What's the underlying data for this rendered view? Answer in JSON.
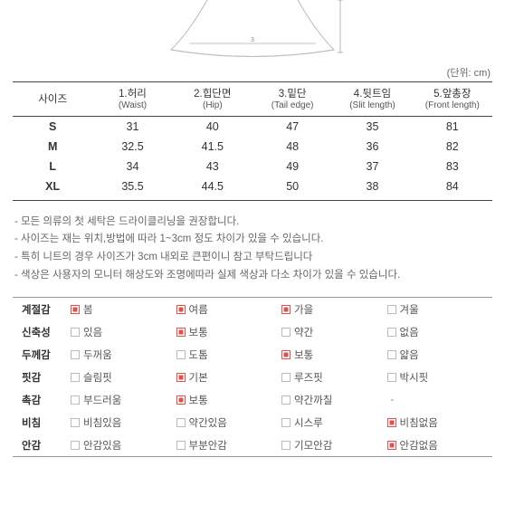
{
  "unit_label": "(단위: cm)",
  "size_table": {
    "headers": [
      {
        "ko": "사이즈",
        "en": ""
      },
      {
        "ko": "1.허리",
        "en": "(Waist)"
      },
      {
        "ko": "2.힙단면",
        "en": "(Hip)"
      },
      {
        "ko": "3.밑단",
        "en": "(Tail edge)"
      },
      {
        "ko": "4.뒷트임",
        "en": "(Slit length)"
      },
      {
        "ko": "5.앞총장",
        "en": "(Front length)"
      }
    ],
    "rows": [
      {
        "label": "S",
        "v": [
          "31",
          "40",
          "47",
          "35",
          "81"
        ]
      },
      {
        "label": "M",
        "v": [
          "32.5",
          "41.5",
          "48",
          "36",
          "82"
        ]
      },
      {
        "label": "L",
        "v": [
          "34",
          "43",
          "49",
          "37",
          "83"
        ]
      },
      {
        "label": "XL",
        "v": [
          "35.5",
          "44.5",
          "50",
          "38",
          "84"
        ]
      }
    ]
  },
  "notes": [
    "- 모든 의류의 첫 세탁은 드라이클리닝을 권장합니다.",
    "- 사이즈는 재는 위치,방법에 따라 1~3cm 정도 차이가 있을 수 있습니다.",
    "- 특히 니트의 경우 사이즈가 3cm 내외로 큰편이니 참고 부탁드립니다",
    "- 색상은 사용자의 모니터 해상도와 조명에따라 실제 색상과 다소 차이가 있을 수 있습니다."
  ],
  "attrs": [
    {
      "label": "계절감",
      "opts": [
        {
          "t": "봄",
          "c": true
        },
        {
          "t": "여름",
          "c": true
        },
        {
          "t": "가을",
          "c": true
        },
        {
          "t": "겨울",
          "c": false
        }
      ]
    },
    {
      "label": "신축성",
      "opts": [
        {
          "t": "있음",
          "c": false
        },
        {
          "t": "보통",
          "c": true
        },
        {
          "t": "약간",
          "c": false
        },
        {
          "t": "없음",
          "c": false
        }
      ]
    },
    {
      "label": "두께감",
      "opts": [
        {
          "t": "두꺼움",
          "c": false
        },
        {
          "t": "도톰",
          "c": false
        },
        {
          "t": "보통",
          "c": true
        },
        {
          "t": "얇음",
          "c": false
        }
      ]
    },
    {
      "label": "핏감",
      "opts": [
        {
          "t": "슬림핏",
          "c": false
        },
        {
          "t": "기본",
          "c": true
        },
        {
          "t": "루즈핏",
          "c": false
        },
        {
          "t": "박시핏",
          "c": false
        }
      ]
    },
    {
      "label": "촉감",
      "opts": [
        {
          "t": "부드러움",
          "c": false
        },
        {
          "t": "보통",
          "c": true
        },
        {
          "t": "약간까칠",
          "c": false
        },
        {
          "t": "-",
          "dash": true
        }
      ]
    },
    {
      "label": "비침",
      "opts": [
        {
          "t": "비침있음",
          "c": false
        },
        {
          "t": "약간있음",
          "c": false
        },
        {
          "t": "시스루",
          "c": false
        },
        {
          "t": "비침없음",
          "c": true
        }
      ]
    },
    {
      "label": "안감",
      "opts": [
        {
          "t": "안감있음",
          "c": false
        },
        {
          "t": "부분안감",
          "c": false
        },
        {
          "t": "기모안감",
          "c": false
        },
        {
          "t": "안감없음",
          "c": true
        }
      ]
    }
  ],
  "colors": {
    "accent": "#d9534f",
    "border": "#444",
    "note": "#666"
  }
}
